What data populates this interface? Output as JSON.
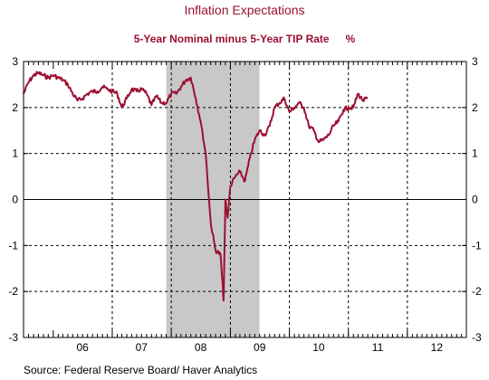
{
  "chart_data": {
    "type": "line",
    "title": "Inflation Expectations",
    "subtitle": "5-Year Nominal minus 5-Year TIP Rate",
    "unit_label": "%",
    "source": "Source:  Federal Reserve Board/ Haver Analytics",
    "xlabel": "",
    "ylabel": "",
    "x_tick_labels": [
      "06",
      "07",
      "08",
      "09",
      "10",
      "11",
      "12"
    ],
    "y_tick_labels": [
      "3",
      "2",
      "1",
      "0",
      "-1",
      "-2",
      "-3"
    ],
    "xlim": [
      "2005-07-01",
      "2012-12-31"
    ],
    "ylim": [
      -3,
      3
    ],
    "grid": true,
    "recession_shading": {
      "start": "2007-12-01",
      "end": "2009-06-30",
      "color": "#c8c8c8"
    },
    "line_color": "#9c1030",
    "series": [
      {
        "x": [
          "2005-07-01",
          "2005-08-01",
          "2005-09-01",
          "2005-10-01",
          "2005-11-01",
          "2005-12-01",
          "2006-01-01",
          "2006-02-01",
          "2006-03-01",
          "2006-04-01",
          "2006-05-01",
          "2006-06-01",
          "2006-07-01",
          "2006-08-01",
          "2006-09-01",
          "2006-10-01",
          "2006-11-01",
          "2006-12-01",
          "2007-01-01",
          "2007-02-01",
          "2007-03-01",
          "2007-04-01",
          "2007-05-01",
          "2007-06-01",
          "2007-07-01",
          "2007-08-01",
          "2007-09-01",
          "2007-10-01",
          "2007-11-01",
          "2007-12-01",
          "2008-01-01",
          "2008-02-01",
          "2008-03-01",
          "2008-04-01",
          "2008-05-01",
          "2008-06-01",
          "2008-07-01",
          "2008-08-01",
          "2008-09-01",
          "2008-10-01",
          "2008-11-01",
          "2008-11-20",
          "2008-12-01",
          "2008-12-15",
          "2009-01-01",
          "2009-02-01",
          "2009-03-01",
          "2009-04-01",
          "2009-05-01",
          "2009-06-01",
          "2009-07-01",
          "2009-08-01",
          "2009-09-01",
          "2009-10-01",
          "2009-11-01",
          "2009-12-01",
          "2010-01-01",
          "2010-02-01",
          "2010-03-01",
          "2010-04-01",
          "2010-05-01",
          "2010-06-01",
          "2010-07-01",
          "2010-08-01",
          "2010-09-01",
          "2010-10-01",
          "2010-11-01",
          "2010-12-01",
          "2011-01-01",
          "2011-02-01",
          "2011-03-01",
          "2011-04-01",
          "2011-05-01"
        ],
        "values": [
          2.3,
          2.55,
          2.7,
          2.75,
          2.7,
          2.65,
          2.7,
          2.65,
          2.6,
          2.5,
          2.3,
          2.15,
          2.2,
          2.3,
          2.35,
          2.35,
          2.45,
          2.4,
          2.35,
          2.3,
          2.0,
          2.2,
          2.4,
          2.35,
          2.4,
          2.3,
          2.05,
          2.25,
          2.1,
          2.1,
          2.3,
          2.3,
          2.45,
          2.6,
          2.65,
          2.2,
          1.7,
          1.0,
          -0.5,
          -1.1,
          -1.2,
          -2.2,
          0.0,
          -0.4,
          0.3,
          0.5,
          0.6,
          0.4,
          0.9,
          1.3,
          1.5,
          1.4,
          1.6,
          2.0,
          2.1,
          2.2,
          1.9,
          2.0,
          2.1,
          2.0,
          1.6,
          1.5,
          1.25,
          1.3,
          1.4,
          1.6,
          1.7,
          1.95,
          2.0,
          2.0,
          2.3,
          2.15,
          2.2
        ]
      }
    ]
  }
}
